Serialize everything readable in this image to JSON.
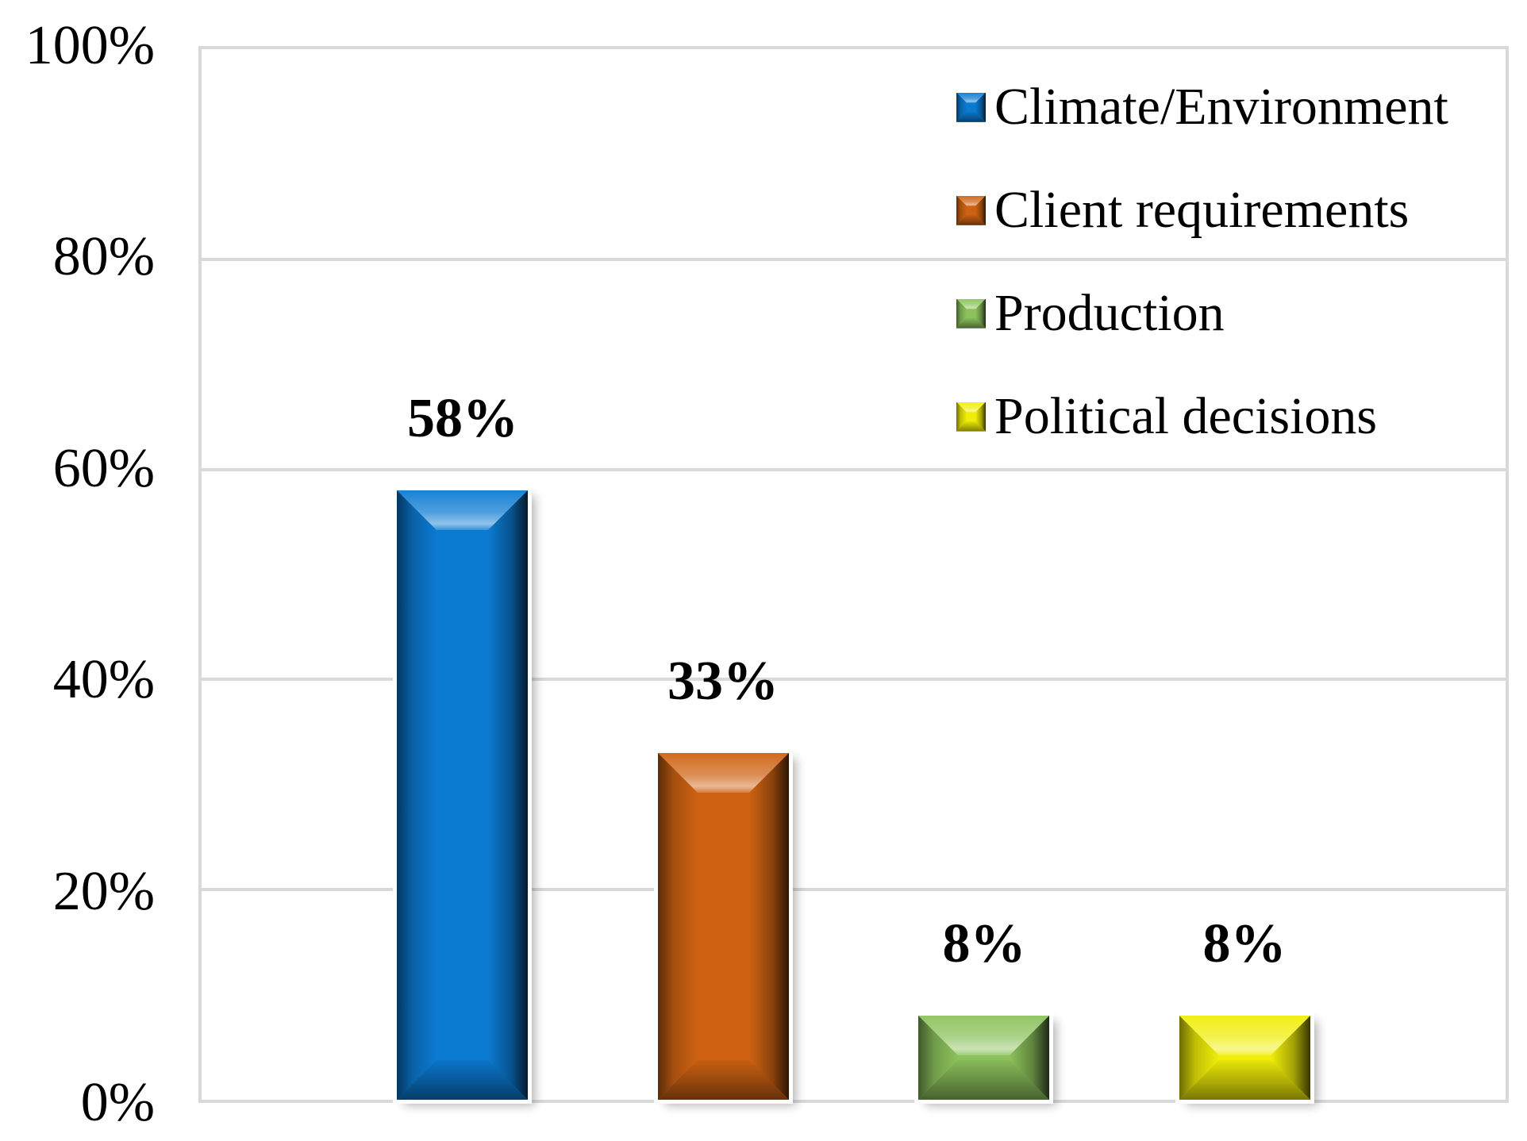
{
  "chart_data": {
    "type": "bar",
    "title": "",
    "xlabel": "",
    "ylabel": "",
    "ylim": [
      0,
      100
    ],
    "grid": "horizontal-major-20pct",
    "gridline_color": "#D9D9D9",
    "plot_background": "#ffffff",
    "bar_style": "3d-bevel",
    "categories": [
      "Climate/Environment",
      "Client requirements",
      "Production",
      "Political decisions"
    ],
    "values": [
      58,
      33,
      8,
      8
    ],
    "bars": [
      {
        "category": "Climate/Environment",
        "value": 58,
        "label": "58%",
        "color": "#0B7AD1"
      },
      {
        "category": "Client requirements",
        "value": 33,
        "label": "33%",
        "color": "#CE6212"
      },
      {
        "category": "Production",
        "value": 8,
        "label": "8%",
        "color": "#8CC25C"
      },
      {
        "category": "Political decisions",
        "value": 8,
        "label": "8%",
        "color": "#F0EE08"
      }
    ],
    "yticks": [
      {
        "label": "100%",
        "value": 100
      },
      {
        "label": "80%",
        "value": 80
      },
      {
        "label": "60%",
        "value": 60
      },
      {
        "label": "40%",
        "value": 40
      },
      {
        "label": "20%",
        "value": 20
      },
      {
        "label": "0%",
        "value": 0
      }
    ],
    "legend_position": "top-right",
    "legend": [
      {
        "label": "Climate/Environment",
        "color": "#0B7AD1"
      },
      {
        "label": "Client requirements",
        "color": "#CE6212"
      },
      {
        "label": "Production",
        "color": "#8CC25C"
      },
      {
        "label": "Political decisions",
        "color": "#F0EE08"
      }
    ]
  }
}
